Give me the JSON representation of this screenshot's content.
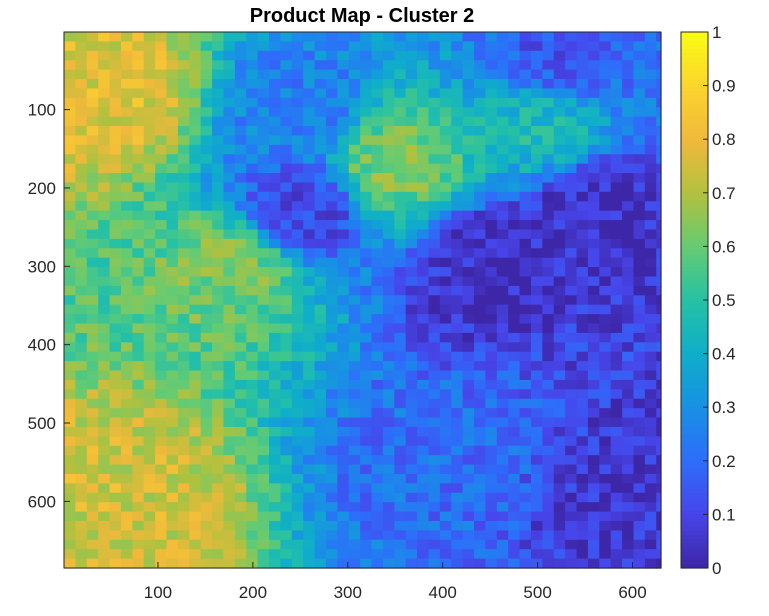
{
  "chart_data": {
    "type": "heatmap",
    "title": "Product Map - Cluster 2",
    "xlabel": "",
    "ylabel": "",
    "colormap": "parula",
    "x_range": [
      1,
      630
    ],
    "y_range": [
      1,
      685
    ],
    "y_axis_reversed": true,
    "x_ticks": [
      "100",
      "200",
      "300",
      "400",
      "500",
      "600"
    ],
    "y_ticks": [
      "100",
      "200",
      "300",
      "400",
      "500",
      "600"
    ],
    "colorbar": {
      "range": [
        0,
        1
      ],
      "ticks": [
        "0",
        "0.1",
        "0.2",
        "0.3",
        "0.4",
        "0.5",
        "0.6",
        "0.7",
        "0.8",
        "0.9",
        "1"
      ]
    },
    "grid": false,
    "value_field_description_points": [
      {
        "x": 50,
        "y": 80,
        "value": 0.78
      },
      {
        "x": 60,
        "y": 600,
        "value": 0.75
      },
      {
        "x": 180,
        "y": 300,
        "value": 0.62
      },
      {
        "x": 450,
        "y": 300,
        "value": 0.03
      },
      {
        "x": 560,
        "y": 230,
        "value": 0.03
      },
      {
        "x": 600,
        "y": 600,
        "value": 0.05
      },
      {
        "x": 400,
        "y": 550,
        "value": 0.2
      },
      {
        "x": 250,
        "y": 100,
        "value": 0.25
      },
      {
        "x": 350,
        "y": 170,
        "value": 0.62
      },
      {
        "x": 500,
        "y": 120,
        "value": 0.45
      },
      {
        "x": 250,
        "y": 230,
        "value": 0.1
      },
      {
        "x": 520,
        "y": 40,
        "value": 0.15
      }
    ]
  }
}
